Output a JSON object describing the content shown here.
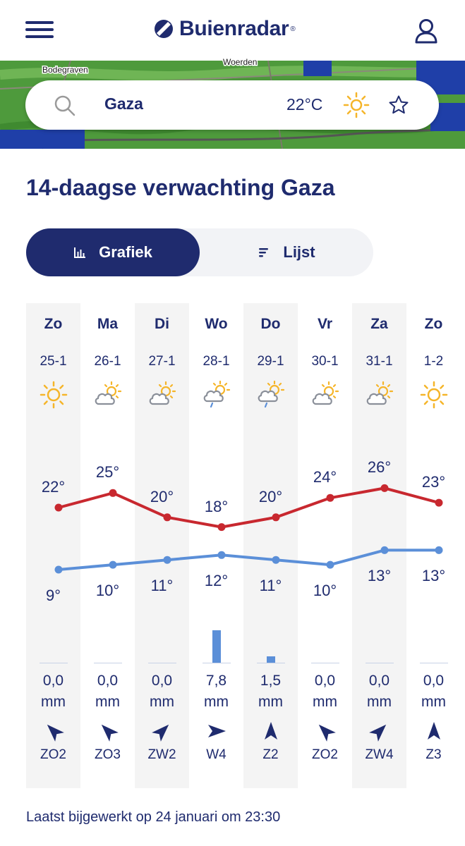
{
  "header": {
    "logo_text": "Buienradar",
    "logo_reg": "®"
  },
  "map": {
    "labels": [
      "Bodegraven",
      "Woerden"
    ]
  },
  "search": {
    "location": "Gaza",
    "current_temp": "22°C",
    "current_icon": "sun-icon"
  },
  "page": {
    "title": "14-daagse verwachting Gaza",
    "updated": "Laatst bijgewerkt op 24 januari om 23:30"
  },
  "view_toggle": {
    "graph_label": "Grafiek",
    "list_label": "Lijst",
    "active": "graph"
  },
  "days": [
    {
      "day": "Zo",
      "date": "25-1",
      "icon": "sun-icon",
      "max": "22°",
      "min": "9°",
      "precip": "0,0",
      "unit": "mm",
      "wind": "ZO2"
    },
    {
      "day": "Ma",
      "date": "26-1",
      "icon": "partly-cloudy-icon",
      "max": "25°",
      "min": "10°",
      "precip": "0,0",
      "unit": "mm",
      "wind": "ZO3"
    },
    {
      "day": "Di",
      "date": "27-1",
      "icon": "partly-cloudy-icon",
      "max": "20°",
      "min": "11°",
      "precip": "0,0",
      "unit": "mm",
      "wind": "ZW2"
    },
    {
      "day": "Wo",
      "date": "28-1",
      "icon": "cloud-rain-sun-icon",
      "max": "18°",
      "min": "12°",
      "precip": "7,8",
      "unit": "mm",
      "wind": "W4"
    },
    {
      "day": "Do",
      "date": "29-1",
      "icon": "cloud-rain-sun-icon",
      "max": "20°",
      "min": "11°",
      "precip": "1,5",
      "unit": "mm",
      "wind": "Z2"
    },
    {
      "day": "Vr",
      "date": "30-1",
      "icon": "partly-cloudy-icon",
      "max": "24°",
      "min": "10°",
      "precip": "0,0",
      "unit": "mm",
      "wind": "ZO2"
    },
    {
      "day": "Za",
      "date": "31-1",
      "icon": "partly-cloudy-icon",
      "max": "26°",
      "min": "13°",
      "precip": "0,0",
      "unit": "mm",
      "wind": "ZW4"
    },
    {
      "day": "Zo",
      "date": "1-2",
      "icon": "sun-icon",
      "max": "23°",
      "min": "13°",
      "precip": "0,0",
      "unit": "mm",
      "wind": "Z3"
    }
  ],
  "chart_data": {
    "type": "line",
    "categories": [
      "Zo 25-1",
      "Ma 26-1",
      "Di 27-1",
      "Wo 28-1",
      "Do 29-1",
      "Vr 30-1",
      "Za 31-1",
      "Zo 1-2"
    ],
    "series": [
      {
        "values": [
          22,
          25,
          20,
          18,
          20,
          24,
          26,
          23
        ],
        "color": "#c8282f"
      },
      {
        "values": [
          9,
          10,
          11,
          12,
          11,
          10,
          13,
          13
        ],
        "color": "#5b8fd8"
      }
    ],
    "precipitation_mm": [
      0.0,
      0.0,
      0.0,
      7.8,
      1.5,
      0.0,
      0.0,
      0.0
    ],
    "wind": [
      "ZO2",
      "ZO3",
      "ZW2",
      "W4",
      "Z2",
      "ZO2",
      "ZW4",
      "Z3"
    ],
    "wind_direction_from_deg": [
      135,
      135,
      225,
      270,
      180,
      135,
      225,
      180
    ]
  },
  "colors": {
    "primary": "#1f2b6e",
    "max_line": "#c8282f",
    "min_line": "#5b8fd8",
    "sun": "#f5b52a"
  }
}
